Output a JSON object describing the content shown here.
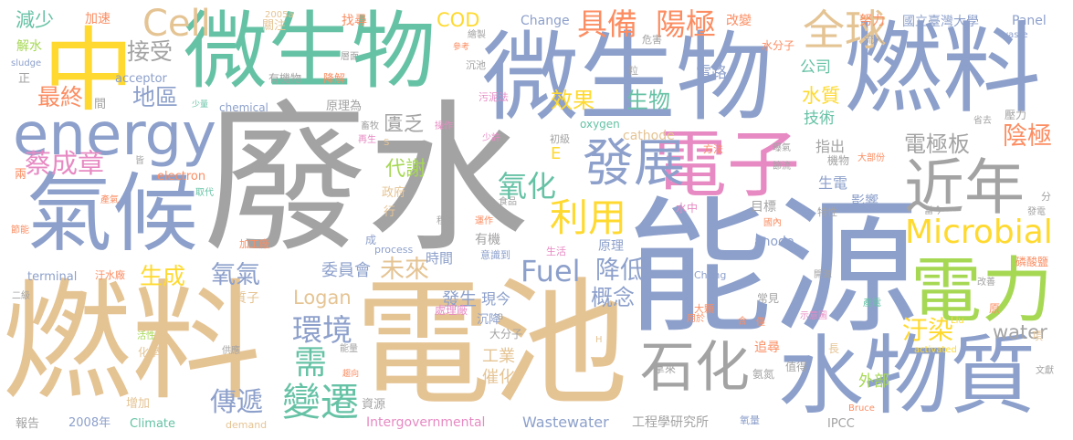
{
  "palette": {
    "blue": "#8da0cb",
    "gray": "#a3a3a3",
    "tan": "#e5c494",
    "yellow": "#ffd92f",
    "green": "#66c2a5",
    "pink": "#e78ac3",
    "orange": "#fc8d62",
    "lime": "#a6d854"
  },
  "words": [
    {
      "text": "廢水",
      "color": "gray"
    },
    {
      "text": "能源",
      "color": "blue"
    },
    {
      "text": "電池",
      "color": "tan"
    },
    {
      "text": "燃料",
      "color": "tan"
    },
    {
      "text": "微生物",
      "color": "blue"
    },
    {
      "text": "燃料",
      "color": "blue"
    },
    {
      "text": "微生物",
      "color": "green"
    },
    {
      "text": "中",
      "color": "yellow"
    },
    {
      "text": "電子",
      "color": "pink"
    },
    {
      "text": "氣候",
      "color": "blue"
    },
    {
      "text": "水物質",
      "color": "blue"
    },
    {
      "text": "電力",
      "color": "lime"
    },
    {
      "text": "energy",
      "color": "blue"
    },
    {
      "text": "近年",
      "color": "gray"
    },
    {
      "text": "石化",
      "color": "gray"
    },
    {
      "text": "發展",
      "color": "blue"
    },
    {
      "text": "全球",
      "color": "tan"
    },
    {
      "text": "Microbial",
      "color": "yellow"
    },
    {
      "text": "利用",
      "color": "yellow"
    },
    {
      "text": "變遷",
      "color": "green"
    },
    {
      "text": "Cell",
      "color": "tan"
    },
    {
      "text": "具備",
      "color": "orange"
    },
    {
      "text": "陽極",
      "color": "orange"
    },
    {
      "text": "環境",
      "color": "blue"
    },
    {
      "text": "Fuel",
      "color": "blue"
    },
    {
      "text": "氧化",
      "color": "green"
    },
    {
      "text": "蔡成章",
      "color": "pink"
    },
    {
      "text": "傳遞",
      "color": "blue"
    },
    {
      "text": "未來",
      "color": "tan"
    },
    {
      "text": "汙染",
      "color": "yellow"
    },
    {
      "text": "陰極",
      "color": "orange"
    },
    {
      "text": "電極板",
      "color": "gray"
    },
    {
      "text": "降低",
      "color": "blue"
    },
    {
      "text": "概念",
      "color": "blue"
    },
    {
      "text": "需",
      "color": "green"
    },
    {
      "text": "氧氣",
      "color": "blue"
    },
    {
      "text": "生成",
      "color": "yellow"
    },
    {
      "text": "接受",
      "color": "gray"
    },
    {
      "text": "地區",
      "color": "blue"
    },
    {
      "text": "最終",
      "color": "orange"
    },
    {
      "text": "效果",
      "color": "yellow"
    },
    {
      "text": "生物",
      "color": "green"
    },
    {
      "text": "代謝",
      "color": "lime"
    },
    {
      "text": "Logan",
      "color": "tan"
    },
    {
      "text": "COD",
      "color": "yellow"
    },
    {
      "text": "水質",
      "color": "yellow"
    },
    {
      "text": "匱乏",
      "color": "gray"
    },
    {
      "text": "water",
      "color": "gray"
    },
    {
      "text": "減少",
      "color": "green"
    },
    {
      "text": "發生",
      "color": "blue"
    },
    {
      "text": "委員會",
      "color": "blue"
    },
    {
      "text": "工業",
      "color": "tan"
    },
    {
      "text": "催化",
      "color": "tan"
    },
    {
      "text": "技術",
      "color": "green"
    },
    {
      "text": "電路",
      "color": "blue"
    },
    {
      "text": "外部",
      "color": "lime"
    },
    {
      "text": "影響",
      "color": "blue"
    },
    {
      "text": "生電",
      "color": "blue"
    },
    {
      "text": "指出",
      "color": "gray"
    },
    {
      "text": "公司",
      "color": "green"
    },
    {
      "text": "現今",
      "color": "blue"
    },
    {
      "text": "時間",
      "color": "blue"
    },
    {
      "text": "Change",
      "color": "blue"
    },
    {
      "text": "國立臺灣大學",
      "color": "blue"
    },
    {
      "text": "Panel",
      "color": "blue"
    },
    {
      "text": "改變",
      "color": "orange"
    },
    {
      "text": "努力",
      "color": "orange"
    },
    {
      "text": "加速",
      "color": "orange"
    },
    {
      "text": "關注",
      "color": "tan"
    },
    {
      "text": "找尋",
      "color": "orange"
    },
    {
      "text": "解水",
      "color": "lime"
    },
    {
      "text": "正",
      "color": "gray"
    },
    {
      "text": "間",
      "color": "gray"
    },
    {
      "text": "acceptor",
      "color": "blue"
    },
    {
      "text": "有機物",
      "color": "gray"
    },
    {
      "text": "降解",
      "color": "orange"
    },
    {
      "text": "原理為",
      "color": "gray"
    },
    {
      "text": "chemical",
      "color": "blue"
    },
    {
      "text": "cathode",
      "color": "tan"
    },
    {
      "text": "oxygen",
      "color": "green"
    },
    {
      "text": "E",
      "color": "yellow"
    },
    {
      "text": "electron",
      "color": "orange"
    },
    {
      "text": "政府",
      "color": "tan"
    },
    {
      "text": "行",
      "color": "tan"
    },
    {
      "text": "水分子",
      "color": "orange"
    },
    {
      "text": "機物",
      "color": "gray"
    },
    {
      "text": "壓力",
      "color": "gray"
    },
    {
      "text": "目標",
      "color": "gray"
    },
    {
      "text": "水中",
      "color": "pink"
    },
    {
      "text": "原理",
      "color": "blue"
    },
    {
      "text": "有機",
      "color": "gray"
    },
    {
      "text": "意識到",
      "color": "blue"
    },
    {
      "text": "anode",
      "color": "blue"
    },
    {
      "text": "質子",
      "color": "tan"
    },
    {
      "text": "terminal",
      "color": "blue"
    },
    {
      "text": "沉降",
      "color": "blue"
    },
    {
      "text": "處理廠",
      "color": "pink"
    },
    {
      "text": "大分子",
      "color": "gray"
    },
    {
      "text": "資源",
      "color": "gray"
    },
    {
      "text": "2008年",
      "color": "blue"
    },
    {
      "text": "Climate",
      "color": "green"
    },
    {
      "text": "demand",
      "color": "tan"
    },
    {
      "text": "Intergovernmental",
      "color": "pink"
    },
    {
      "text": "Wastewater",
      "color": "blue"
    },
    {
      "text": "工程學研究所",
      "color": "gray"
    },
    {
      "text": "IPCC",
      "color": "gray"
    },
    {
      "text": "氧量",
      "color": "blue"
    },
    {
      "text": "Bruce",
      "color": "orange"
    },
    {
      "text": "報告",
      "color": "gray"
    },
    {
      "text": "增加",
      "color": "tan"
    },
    {
      "text": "化學",
      "color": "tan"
    },
    {
      "text": "追尋",
      "color": "orange"
    },
    {
      "text": "值得",
      "color": "gray"
    },
    {
      "text": "拿來",
      "color": "gray"
    },
    {
      "text": "長",
      "color": "tan"
    },
    {
      "text": "氨氮",
      "color": "gray"
    },
    {
      "text": "項",
      "color": "tan"
    },
    {
      "text": "原",
      "color": "orange"
    },
    {
      "text": "常見",
      "color": "gray"
    },
    {
      "text": "大顆",
      "color": "orange"
    },
    {
      "text": "Cheng",
      "color": "blue"
    },
    {
      "text": "activated",
      "color": "yellow"
    },
    {
      "text": "waste",
      "color": "blue"
    },
    {
      "text": "sludge",
      "color": "blue"
    },
    {
      "text": "2005a",
      "color": "tan"
    },
    {
      "text": "層面",
      "color": "gray"
    },
    {
      "text": "繪製",
      "color": "gray"
    },
    {
      "text": "危害",
      "color": "gray"
    },
    {
      "text": "沉池",
      "color": "gray"
    },
    {
      "text": "粒",
      "color": "gray"
    },
    {
      "text": "流入",
      "color": "gray"
    },
    {
      "text": "污泥法",
      "color": "pink"
    },
    {
      "text": "操作",
      "color": "pink"
    },
    {
      "text": "少許",
      "color": "pink"
    },
    {
      "text": "初級",
      "color": "gray"
    },
    {
      "text": "方法",
      "color": "orange"
    },
    {
      "text": "曝氣",
      "color": "gray"
    },
    {
      "text": "節流",
      "color": "gray"
    },
    {
      "text": "大部份",
      "color": "orange"
    },
    {
      "text": "省去",
      "color": "gray"
    },
    {
      "text": "分",
      "color": "gray"
    },
    {
      "text": "發電",
      "color": "gray"
    },
    {
      "text": "當今",
      "color": "gray"
    },
    {
      "text": "特性",
      "color": "gray"
    },
    {
      "text": "國內",
      "color": "orange"
    },
    {
      "text": "磷酸鹽",
      "color": "orange"
    },
    {
      "text": "改善",
      "color": "gray"
    },
    {
      "text": "開源",
      "color": "gray"
    },
    {
      "text": "示意圖",
      "color": "pink"
    },
    {
      "text": "產電",
      "color": "green"
    },
    {
      "text": "用於",
      "color": "orange"
    },
    {
      "text": "含",
      "color": "orange"
    },
    {
      "text": "僅",
      "color": "orange"
    },
    {
      "text": "Liu",
      "color": "yellow"
    },
    {
      "text": "文獻",
      "color": "gray"
    },
    {
      "text": "生活",
      "color": "pink"
    },
    {
      "text": "運作",
      "color": "orange"
    },
    {
      "text": "程序",
      "color": "gray"
    },
    {
      "text": "食品",
      "color": "gray"
    },
    {
      "text": "process",
      "color": "blue"
    },
    {
      "text": "加工廠",
      "color": "orange"
    },
    {
      "text": "汙水廠",
      "color": "orange"
    },
    {
      "text": "二級",
      "color": "gray"
    },
    {
      "text": "活性",
      "color": "lime"
    },
    {
      "text": "供應",
      "color": "gray"
    },
    {
      "text": "能量",
      "color": "gray"
    },
    {
      "text": "趨向",
      "color": "orange"
    },
    {
      "text": "H",
      "color": "tan"
    },
    {
      "text": "B",
      "color": "gray"
    },
    {
      "text": "S",
      "color": "tan"
    },
    {
      "text": "皆",
      "color": "gray"
    },
    {
      "text": "兩",
      "color": "orange"
    },
    {
      "text": "產氣",
      "color": "orange"
    },
    {
      "text": "節能",
      "color": "orange"
    },
    {
      "text": "取代",
      "color": "green"
    },
    {
      "text": "再生",
      "color": "pink"
    },
    {
      "text": "少量",
      "color": "green"
    },
    {
      "text": "畜牧",
      "color": "gray"
    },
    {
      "text": "成",
      "color": "blue"
    },
    {
      "text": "參考",
      "color": "orange"
    }
  ]
}
